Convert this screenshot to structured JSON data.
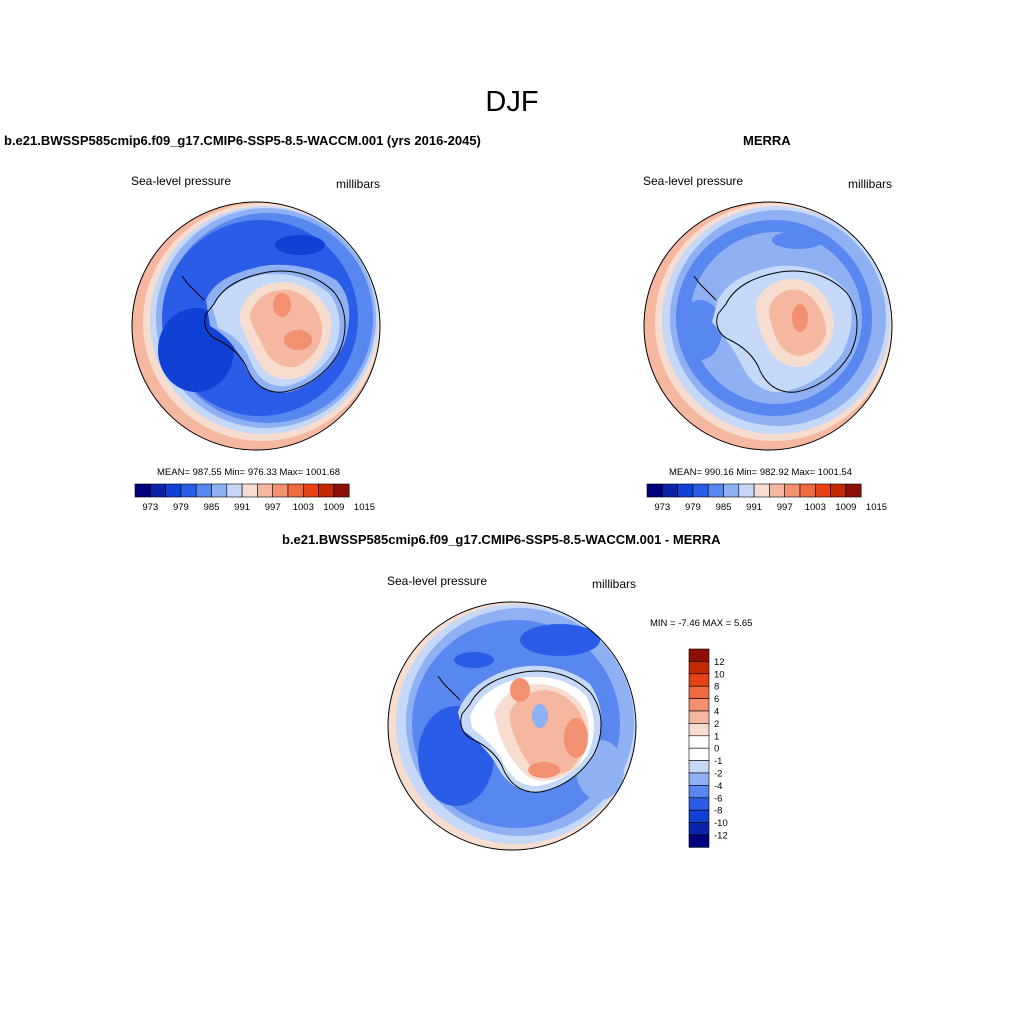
{
  "figure": {
    "title": "DJF",
    "panels": [
      {
        "id": "model",
        "title": "b.e21.BWSSP585cmip6.f09_g17.CMIP6-SSP5-8.5-WACCM.001 (yrs 2016-2045)",
        "variable": "Sea-level pressure",
        "units": "millibars",
        "stats": "MEAN= 987.55  Min= 976.33  Max= 1001.68"
      },
      {
        "id": "obs",
        "title": "MERRA",
        "variable": "Sea-level pressure",
        "units": "millibars",
        "stats": "MEAN= 990.16  Min= 982.92  Max= 1001.54"
      },
      {
        "id": "diff",
        "title": "b.e21.BWSSP585cmip6.f09_g17.CMIP6-SSP5-8.5-WACCM.001 - MERRA",
        "variable": "Sea-level pressure",
        "units": "millibars",
        "stats": "MIN =  -7.46 MAX =   5.65"
      }
    ],
    "colorbar_slp": {
      "tick_labels": [
        "973",
        "979",
        "985",
        "991",
        "997",
        "1003",
        "1009",
        "1015"
      ],
      "colors": [
        "#00007f",
        "#0a23a8",
        "#1141d4",
        "#2a5ce8",
        "#5887f0",
        "#8fb1f4",
        "#c5d8f7",
        "#f7ddd0",
        "#f5b79f",
        "#f2906f",
        "#ee6a40",
        "#e64214",
        "#c22a06",
        "#8c1005"
      ]
    },
    "colorbar_diff": {
      "tick_labels": [
        "12",
        "10",
        "8",
        "6",
        "4",
        "2",
        "1",
        "0",
        "-1",
        "-2",
        "-4",
        "-6",
        "-8",
        "-10",
        "-12"
      ],
      "colors": [
        "#8c1005",
        "#c22a06",
        "#e64214",
        "#ee6a40",
        "#f2906f",
        "#f5b79f",
        "#f7ddd0",
        "#ffffff",
        "#ffffff",
        "#c5d8f7",
        "#8fb1f4",
        "#5887f0",
        "#2a5ce8",
        "#1141d4",
        "#0a23a8",
        "#00007f"
      ]
    },
    "map_colors": {
      "high": "#f5b79f",
      "higher": "#f2906f",
      "light_high": "#f7ddd0",
      "pale_blue": "#c5d8f7",
      "light_blue": "#8fb1f4",
      "mid_blue": "#5887f0",
      "blue": "#2a5ce8",
      "dark_blue": "#1141d4"
    }
  }
}
